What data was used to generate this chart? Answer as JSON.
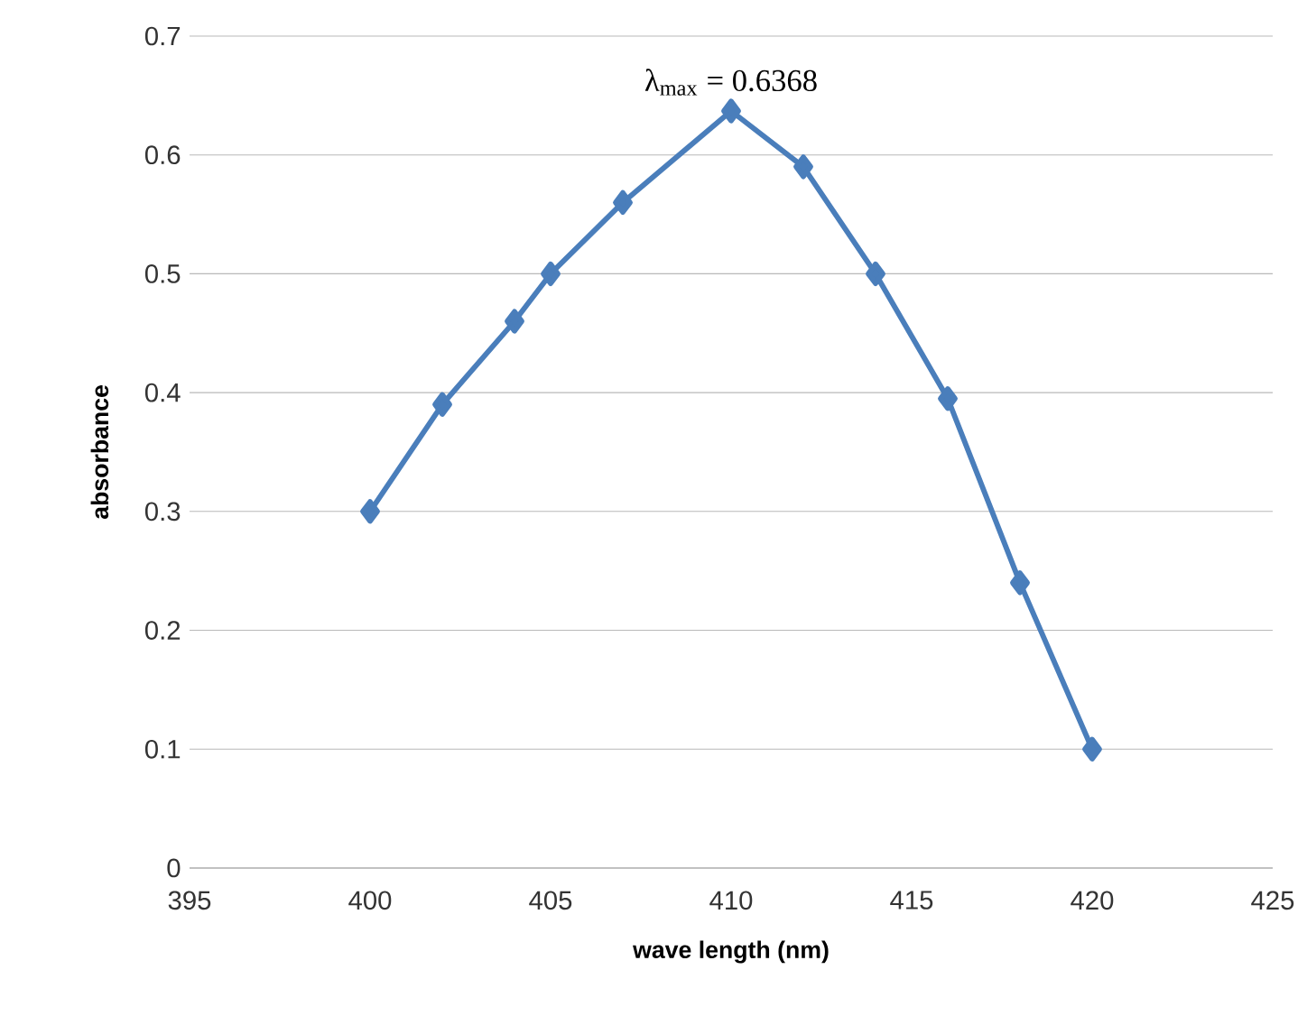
{
  "chart_data": {
    "type": "line",
    "xlabel": "wave length (nm)",
    "ylabel": "absorbance",
    "x": [
      400,
      402,
      404,
      405,
      407,
      410,
      412,
      414,
      416,
      418,
      420
    ],
    "series": [
      {
        "color": "#4a7ebb",
        "values": [
          0.3,
          0.39,
          0.46,
          0.5,
          0.56,
          0.637,
          0.59,
          0.5,
          0.395,
          0.24,
          0.1
        ]
      }
    ],
    "xlim": [
      395,
      425
    ],
    "xticks": [
      395,
      400,
      405,
      410,
      415,
      420,
      425
    ],
    "ylim": [
      0,
      0.7
    ],
    "yticks": [
      0,
      0.1,
      0.2,
      0.3,
      0.4,
      0.5,
      0.6,
      0.7
    ],
    "grid": "y",
    "marker": "diamond",
    "line_style": "solid",
    "annotations": [
      {
        "text": "λ$_{max}$ = 0.6368",
        "x": 410,
        "y": 0.6368
      }
    ]
  }
}
